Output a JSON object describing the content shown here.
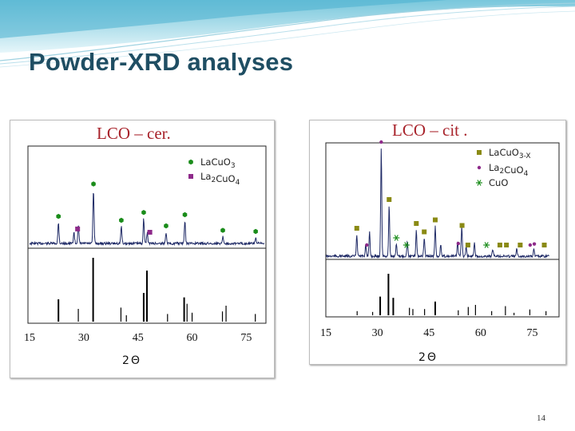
{
  "slide": {
    "title": "Powder-XRD analyses",
    "page_number": "14"
  },
  "chart_data": [
    {
      "type": "line",
      "title": "LCO – cer.",
      "xlabel": "2Θ",
      "ylabel": "",
      "xlim": [
        15,
        80
      ],
      "xticks": [
        15,
        30,
        45,
        60,
        75
      ],
      "grid": false,
      "legend_position": "top-right",
      "legend": [
        {
          "label_parts": [
            [
              "La",
              "n"
            ],
            [
              "Cu",
              "n"
            ],
            [
              "O",
              "n"
            ],
            [
              "3",
              "sub"
            ]
          ],
          "marker": "hexagon",
          "color": "#1a8c1a"
        },
        {
          "label_parts": [
            [
              "La",
              "n"
            ],
            [
              "2",
              "sub"
            ],
            [
              "Cu",
              "n"
            ],
            [
              "O",
              "n"
            ],
            [
              "4",
              "sub"
            ]
          ],
          "marker": "square",
          "color": "#8e2a8a"
        }
      ],
      "peaks": [
        {
          "x": 23,
          "h": 0.37
        },
        {
          "x": 27.3,
          "h": 0.2
        },
        {
          "x": 28.5,
          "h": 0.33
        },
        {
          "x": 32.7,
          "h": 0.95
        },
        {
          "x": 40.4,
          "h": 0.3
        },
        {
          "x": 46.6,
          "h": 0.44
        },
        {
          "x": 47.6,
          "h": 0.2
        },
        {
          "x": 52.8,
          "h": 0.2
        },
        {
          "x": 58,
          "h": 0.4
        },
        {
          "x": 68.5,
          "h": 0.12
        },
        {
          "x": 77.6,
          "h": 0.1
        }
      ],
      "phase_markers": [
        {
          "x": 23,
          "phase": "La1"
        },
        {
          "x": 28.3,
          "phase": "La2"
        },
        {
          "x": 32.7,
          "phase": "La1"
        },
        {
          "x": 40.4,
          "phase": "La1"
        },
        {
          "x": 46.6,
          "phase": "La1"
        },
        {
          "x": 48.3,
          "phase": "La2"
        },
        {
          "x": 52.8,
          "phase": "La1"
        },
        {
          "x": 58,
          "phase": "La1"
        },
        {
          "x": 68.5,
          "phase": "La1"
        },
        {
          "x": 77.6,
          "phase": "La1"
        }
      ],
      "reference_bars": [
        {
          "x": 23,
          "h": 0.35
        },
        {
          "x": 28.5,
          "h": 0.2
        },
        {
          "x": 32.6,
          "h": 1.0
        },
        {
          "x": 40.3,
          "h": 0.22
        },
        {
          "x": 41.8,
          "h": 0.1
        },
        {
          "x": 46.6,
          "h": 0.45
        },
        {
          "x": 47.5,
          "h": 0.8
        },
        {
          "x": 53.2,
          "h": 0.12
        },
        {
          "x": 57.8,
          "h": 0.38
        },
        {
          "x": 58.6,
          "h": 0.28
        },
        {
          "x": 60,
          "h": 0.14
        },
        {
          "x": 68.4,
          "h": 0.16
        },
        {
          "x": 69.4,
          "h": 0.25
        },
        {
          "x": 77.5,
          "h": 0.12
        }
      ]
    },
    {
      "type": "line",
      "title": "LCO – cit .",
      "xlabel": "2Θ",
      "ylabel": "",
      "xlim": [
        15,
        80
      ],
      "xticks": [
        15,
        30,
        45,
        60,
        75
      ],
      "grid": false,
      "legend_position": "top-right",
      "legend": [
        {
          "label_parts": [
            [
              "La",
              "n"
            ],
            [
              "Cu",
              "n"
            ],
            [
              "O",
              "n"
            ],
            [
              "3-X",
              "sub"
            ]
          ],
          "marker": "square",
          "color": "#8a8a14"
        },
        {
          "label_parts": [
            [
              "La",
              "n"
            ],
            [
              "2",
              "sub"
            ],
            [
              "Cu",
              "n"
            ],
            [
              "O",
              "n"
            ],
            [
              "4",
              "sub"
            ]
          ],
          "marker": "dot",
          "color": "#8e2a8a"
        },
        {
          "label_parts": [
            [
              "Cu",
              "n"
            ],
            [
              "O",
              "n"
            ]
          ],
          "marker": "asterisk",
          "color": "#1a8c1a"
        }
      ],
      "peaks": [
        {
          "x": 24,
          "h": 0.18
        },
        {
          "x": 26.6,
          "h": 0.1
        },
        {
          "x": 27.7,
          "h": 0.2
        },
        {
          "x": 31.1,
          "h": 0.9
        },
        {
          "x": 33.4,
          "h": 0.42
        },
        {
          "x": 35.5,
          "h": 0.1
        },
        {
          "x": 38.7,
          "h": 0.13
        },
        {
          "x": 41.3,
          "h": 0.22
        },
        {
          "x": 43.6,
          "h": 0.15
        },
        {
          "x": 46.8,
          "h": 0.25
        },
        {
          "x": 48.4,
          "h": 0.1
        },
        {
          "x": 53.3,
          "h": 0.12
        },
        {
          "x": 54.5,
          "h": 0.25
        },
        {
          "x": 55.8,
          "h": 0.08
        },
        {
          "x": 58.2,
          "h": 0.12
        },
        {
          "x": 63.5,
          "h": 0.06
        },
        {
          "x": 70.5,
          "h": 0.06
        },
        {
          "x": 75.5,
          "h": 0.06
        }
      ],
      "phase_markers": [
        {
          "x": 31.1,
          "phase": "La2"
        },
        {
          "x": 33.4,
          "phase": "La1"
        },
        {
          "x": 24,
          "phase": "La1"
        },
        {
          "x": 26.9,
          "phase": "La2"
        },
        {
          "x": 41.3,
          "phase": "La1"
        },
        {
          "x": 46.8,
          "phase": "La1"
        },
        {
          "x": 35.5,
          "phase": "Cu"
        },
        {
          "x": 38.4,
          "phase": "Cu"
        },
        {
          "x": 43.6,
          "phase": "La1"
        },
        {
          "x": 53.5,
          "phase": "La2"
        },
        {
          "x": 54.6,
          "phase": "La1"
        },
        {
          "x": 56.3,
          "phase": "La1"
        },
        {
          "x": 61.7,
          "phase": "Cu"
        },
        {
          "x": 65.6,
          "phase": "La1"
        },
        {
          "x": 67.5,
          "phase": "La1"
        },
        {
          "x": 71.5,
          "phase": "La1"
        },
        {
          "x": 74.4,
          "phase": "La2"
        },
        {
          "x": 75.6,
          "phase": "La2"
        },
        {
          "x": 78.5,
          "phase": "La1"
        }
      ],
      "reference_bars": [
        {
          "x": 24.1,
          "h": 0.1
        },
        {
          "x": 28.6,
          "h": 0.08
        },
        {
          "x": 30.8,
          "h": 0.45
        },
        {
          "x": 33.2,
          "h": 1.0
        },
        {
          "x": 34.6,
          "h": 0.42
        },
        {
          "x": 39.3,
          "h": 0.18
        },
        {
          "x": 40.3,
          "h": 0.15
        },
        {
          "x": 43.7,
          "h": 0.15
        },
        {
          "x": 46.8,
          "h": 0.33
        },
        {
          "x": 53.5,
          "h": 0.12
        },
        {
          "x": 56.4,
          "h": 0.2
        },
        {
          "x": 58.5,
          "h": 0.25
        },
        {
          "x": 63.2,
          "h": 0.1
        },
        {
          "x": 67.2,
          "h": 0.22
        },
        {
          "x": 69.7,
          "h": 0.06
        },
        {
          "x": 74.3,
          "h": 0.14
        },
        {
          "x": 79,
          "h": 0.1
        }
      ]
    }
  ]
}
